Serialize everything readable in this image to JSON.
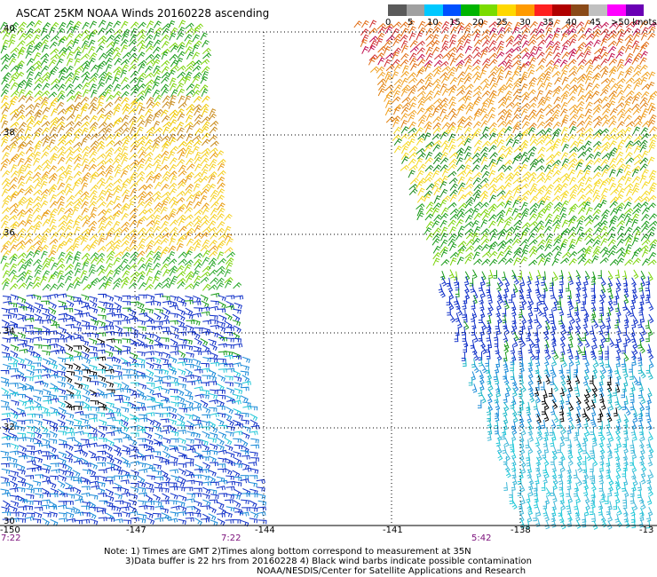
{
  "title": "ASCAT 25KM NOAA Winds 20160228 ascending",
  "colorbar": {
    "labels": [
      "0",
      "5",
      "10",
      "15",
      "20",
      "25",
      "30",
      "35",
      "40",
      "45",
      ">50 knots"
    ],
    "colors": [
      "#5a5a5a",
      "#a0a0a0",
      "#00c8ff",
      "#0050ff",
      "#00b400",
      "#7adc00",
      "#ffd800",
      "#ff9a00",
      "#ff2020",
      "#b00000",
      "#8a4a18",
      "#c0c0c0",
      "#ff00ff",
      "#6a00b4"
    ]
  },
  "latitude_labels": [
    "40",
    "38",
    "36",
    "34",
    "32",
    "30"
  ],
  "longitude_labels": [
    "-150",
    "-147",
    "-144",
    "-141",
    "-138",
    "-13"
  ],
  "times": [
    "7:22",
    "7:22",
    "5:42"
  ],
  "notes": [
    "Note: 1) Times are GMT 2)Times along bottom correspond to measurement at 35N",
    "3)Data buffer is 22 hrs from 20160228 4) Black wind barbs indicate possible contamination",
    "NOAA/NESDIS/Center for Satellite Applications and Research"
  ]
}
